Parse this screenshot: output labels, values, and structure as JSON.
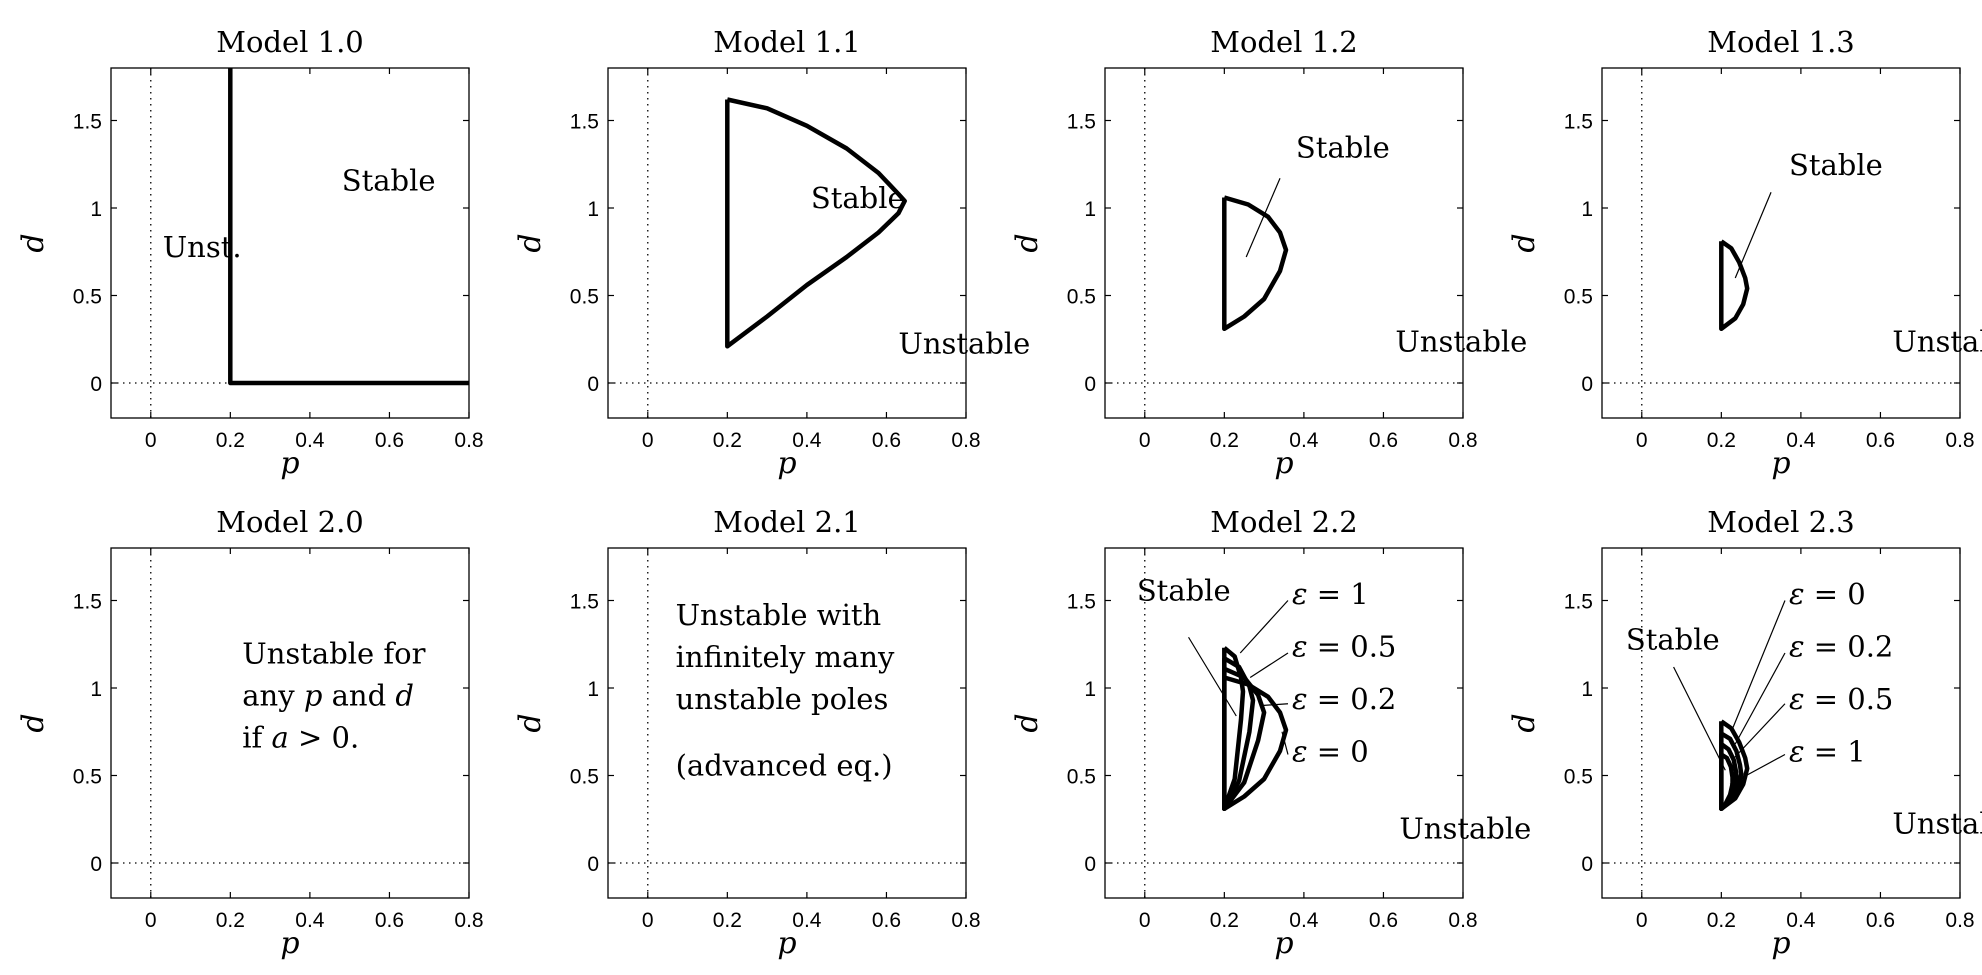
{
  "chart_data": [
    {
      "type": "line",
      "title": "Model 1.0",
      "xlabel": "p",
      "ylabel": "d",
      "xlim": [
        -0.1,
        0.8
      ],
      "ylim": [
        -0.2,
        1.8
      ],
      "xticks": [
        "0",
        "0.2",
        "0.4",
        "0.6",
        "0.8"
      ],
      "yticks": [
        "0",
        "0.5",
        "1",
        "1.5"
      ],
      "series": [
        {
          "points": [
            [
              0.2,
              1.8
            ],
            [
              0.2,
              0
            ],
            [
              0.8,
              0
            ]
          ]
        }
      ],
      "labels": [
        {
          "text": "Stable",
          "x": 0.48,
          "y": 1.1
        },
        {
          "text": "Unst.",
          "x": 0.03,
          "y": 0.72
        }
      ]
    },
    {
      "type": "line",
      "title": "Model 1.1",
      "xlabel": "p",
      "ylabel": "d",
      "xlim": [
        -0.1,
        0.8
      ],
      "ylim": [
        -0.2,
        1.8
      ],
      "xticks": [
        "0",
        "0.2",
        "0.4",
        "0.6",
        "0.8"
      ],
      "yticks": [
        "0",
        "0.5",
        "1",
        "1.5"
      ],
      "series": [
        {
          "points": [
            [
              0.2,
              1.62
            ],
            [
              0.3,
              1.57
            ],
            [
              0.4,
              1.47
            ],
            [
              0.5,
              1.34
            ],
            [
              0.58,
              1.2
            ],
            [
              0.63,
              1.08
            ],
            [
              0.646,
              1.04
            ],
            [
              0.63,
              0.97
            ],
            [
              0.58,
              0.86
            ],
            [
              0.5,
              0.72
            ],
            [
              0.4,
              0.56
            ],
            [
              0.3,
              0.38
            ],
            [
              0.2,
              0.21
            ],
            [
              0.2,
              1.62
            ]
          ]
        }
      ],
      "labels": [
        {
          "text": "Stable",
          "x": 0.41,
          "y": 1.0
        },
        {
          "text": "Unstable",
          "x": 0.63,
          "y": 0.17
        }
      ]
    },
    {
      "type": "line",
      "title": "Model 1.2",
      "xlabel": "p",
      "ylabel": "d",
      "xlim": [
        -0.1,
        0.8
      ],
      "ylim": [
        -0.2,
        1.8
      ],
      "xticks": [
        "0",
        "0.2",
        "0.4",
        "0.6",
        "0.8"
      ],
      "yticks": [
        "0",
        "0.5",
        "1",
        "1.5"
      ],
      "series": [
        {
          "points": [
            [
              0.2,
              1.06
            ],
            [
              0.26,
              1.02
            ],
            [
              0.31,
              0.95
            ],
            [
              0.34,
              0.86
            ],
            [
              0.355,
              0.76
            ],
            [
              0.34,
              0.64
            ],
            [
              0.3,
              0.48
            ],
            [
              0.25,
              0.38
            ],
            [
              0.2,
              0.31
            ],
            [
              0.2,
              1.06
            ]
          ]
        }
      ],
      "labels": [
        {
          "text": "Stable",
          "x": 0.38,
          "y": 1.29
        },
        {
          "text": "Unstable",
          "x": 0.63,
          "y": 0.18
        }
      ],
      "leaders": [
        {
          "from": [
            0.34,
            1.17
          ],
          "to": [
            0.255,
            0.72
          ]
        }
      ]
    },
    {
      "type": "line",
      "title": "Model 1.3",
      "xlabel": "p",
      "ylabel": "d",
      "xlim": [
        -0.1,
        0.8
      ],
      "ylim": [
        -0.2,
        1.8
      ],
      "xticks": [
        "0",
        "0.2",
        "0.4",
        "0.6",
        "0.8"
      ],
      "yticks": [
        "0",
        "0.5",
        "1",
        "1.5"
      ],
      "series": [
        {
          "points": [
            [
              0.2,
              0.81
            ],
            [
              0.225,
              0.77
            ],
            [
              0.245,
              0.69
            ],
            [
              0.26,
              0.6
            ],
            [
              0.265,
              0.54
            ],
            [
              0.255,
              0.45
            ],
            [
              0.235,
              0.37
            ],
            [
              0.2,
              0.31
            ],
            [
              0.2,
              0.81
            ]
          ]
        }
      ],
      "labels": [
        {
          "text": "Stable",
          "x": 0.37,
          "y": 1.19
        },
        {
          "text": "Unstable",
          "x": 0.63,
          "y": 0.18
        }
      ],
      "leaders": [
        {
          "from": [
            0.325,
            1.09
          ],
          "to": [
            0.235,
            0.6
          ]
        }
      ]
    },
    {
      "type": "line",
      "title": "Model 2.0",
      "xlabel": "p",
      "ylabel": "d",
      "xlim": [
        -0.1,
        0.8
      ],
      "ylim": [
        -0.2,
        1.8
      ],
      "xticks": [
        "0",
        "0.2",
        "0.4",
        "0.6",
        "0.8"
      ],
      "yticks": [
        "0",
        "0.5",
        "1",
        "1.5"
      ],
      "series": [],
      "labels": [
        {
          "text": "Unstable for",
          "x": 0.23,
          "y": 1.14
        },
        {
          "parts": [
            {
              "t": "any "
            },
            {
              "t": "p",
              "i": true
            },
            {
              "t": " and "
            },
            {
              "t": "d",
              "i": true
            }
          ],
          "x": 0.23,
          "y": 0.9
        },
        {
          "parts": [
            {
              "t": "if "
            },
            {
              "t": "a",
              "i": true
            },
            {
              "t": " > 0."
            }
          ],
          "x": 0.23,
          "y": 0.66
        }
      ]
    },
    {
      "type": "line",
      "title": "Model 2.1",
      "xlabel": "p",
      "ylabel": "d",
      "xlim": [
        -0.1,
        0.8
      ],
      "ylim": [
        -0.2,
        1.8
      ],
      "xticks": [
        "0",
        "0.2",
        "0.4",
        "0.6",
        "0.8"
      ],
      "yticks": [
        "0",
        "0.5",
        "1",
        "1.5"
      ],
      "series": [],
      "labels": [
        {
          "text": "Unstable with",
          "x": 0.07,
          "y": 1.36
        },
        {
          "text": "infinitely many",
          "x": 0.07,
          "y": 1.12
        },
        {
          "text": "unstable poles",
          "x": 0.07,
          "y": 0.88
        },
        {
          "text": "(advanced eq.)",
          "x": 0.07,
          "y": 0.5
        }
      ]
    },
    {
      "type": "line",
      "title": "Model 2.2",
      "xlabel": "p",
      "ylabel": "d",
      "xlim": [
        -0.1,
        0.8
      ],
      "ylim": [
        -0.2,
        1.8
      ],
      "xticks": [
        "0",
        "0.2",
        "0.4",
        "0.6",
        "0.8"
      ],
      "yticks": [
        "0",
        "0.5",
        "1",
        "1.5"
      ],
      "series": [
        {
          "name": "ε = 1",
          "points": [
            [
              0.2,
              1.23
            ],
            [
              0.226,
              1.18
            ],
            [
              0.242,
              1.06
            ],
            [
              0.247,
              0.98
            ],
            [
              0.242,
              0.82
            ],
            [
              0.226,
              0.48
            ],
            [
              0.2,
              0.31
            ],
            [
              0.2,
              1.23
            ]
          ]
        },
        {
          "name": "ε = 0.5",
          "points": [
            [
              0.2,
              1.17
            ],
            [
              0.237,
              1.12
            ],
            [
              0.263,
              1.01
            ],
            [
              0.272,
              0.93
            ],
            [
              0.263,
              0.75
            ],
            [
              0.237,
              0.47
            ],
            [
              0.2,
              0.31
            ],
            [
              0.2,
              1.17
            ]
          ]
        },
        {
          "name": "ε = 0.2",
          "points": [
            [
              0.2,
              1.11
            ],
            [
              0.25,
              1.06
            ],
            [
              0.285,
              0.96
            ],
            [
              0.3,
              0.86
            ],
            [
              0.285,
              0.7
            ],
            [
              0.25,
              0.46
            ],
            [
              0.2,
              0.31
            ],
            [
              0.2,
              1.11
            ]
          ]
        },
        {
          "name": "ε = 0",
          "points": [
            [
              0.2,
              1.06
            ],
            [
              0.26,
              1.02
            ],
            [
              0.31,
              0.95
            ],
            [
              0.34,
              0.86
            ],
            [
              0.355,
              0.76
            ],
            [
              0.34,
              0.64
            ],
            [
              0.3,
              0.48
            ],
            [
              0.25,
              0.38
            ],
            [
              0.2,
              0.31
            ],
            [
              0.2,
              1.06
            ]
          ]
        }
      ],
      "labels": [
        {
          "text": "Stable",
          "x": -0.02,
          "y": 1.5
        },
        {
          "parts": [
            {
              "t": "ε",
              "i": true
            },
            {
              "t": " = 1"
            }
          ],
          "x": 0.37,
          "y": 1.48
        },
        {
          "parts": [
            {
              "t": "ε",
              "i": true
            },
            {
              "t": " = 0.5"
            }
          ],
          "x": 0.37,
          "y": 1.18
        },
        {
          "parts": [
            {
              "t": "ε",
              "i": true
            },
            {
              "t": " = 0.2"
            }
          ],
          "x": 0.37,
          "y": 0.88
        },
        {
          "parts": [
            {
              "t": "ε",
              "i": true
            },
            {
              "t": " = 0"
            }
          ],
          "x": 0.37,
          "y": 0.58
        },
        {
          "text": "Unstable",
          "x": 0.64,
          "y": 0.14
        }
      ],
      "leaders": [
        {
          "from": [
            0.11,
            1.29
          ],
          "to": [
            0.23,
            0.84
          ]
        },
        {
          "from": [
            0.36,
            1.5
          ],
          "to": [
            0.24,
            1.2
          ]
        },
        {
          "from": [
            0.36,
            1.2
          ],
          "to": [
            0.265,
            1.06
          ]
        },
        {
          "from": [
            0.36,
            0.91
          ],
          "to": [
            0.295,
            0.9
          ]
        },
        {
          "from": [
            0.36,
            0.62
          ],
          "to": [
            0.345,
            0.75
          ]
        }
      ]
    },
    {
      "type": "line",
      "title": "Model 2.3",
      "xlabel": "p",
      "ylabel": "d",
      "xlim": [
        -0.1,
        0.8
      ],
      "ylim": [
        -0.2,
        1.8
      ],
      "xticks": [
        "0",
        "0.2",
        "0.4",
        "0.6",
        "0.8"
      ],
      "yticks": [
        "0",
        "0.5",
        "1",
        "1.5"
      ],
      "series": [
        {
          "name": "ε = 0",
          "points": [
            [
              0.2,
              0.81
            ],
            [
              0.225,
              0.77
            ],
            [
              0.245,
              0.69
            ],
            [
              0.26,
              0.6
            ],
            [
              0.265,
              0.54
            ],
            [
              0.255,
              0.45
            ],
            [
              0.235,
              0.37
            ],
            [
              0.2,
              0.31
            ],
            [
              0.2,
              0.81
            ]
          ]
        },
        {
          "name": "ε = 0.2",
          "points": [
            [
              0.2,
              0.74
            ],
            [
              0.222,
              0.71
            ],
            [
              0.238,
              0.64
            ],
            [
              0.247,
              0.56
            ],
            [
              0.25,
              0.51
            ],
            [
              0.243,
              0.43
            ],
            [
              0.225,
              0.36
            ],
            [
              0.2,
              0.31
            ],
            [
              0.2,
              0.74
            ]
          ]
        },
        {
          "name": "ε = 0.5",
          "points": [
            [
              0.2,
              0.68
            ],
            [
              0.218,
              0.65
            ],
            [
              0.231,
              0.59
            ],
            [
              0.237,
              0.52
            ],
            [
              0.238,
              0.48
            ],
            [
              0.232,
              0.41
            ],
            [
              0.218,
              0.35
            ],
            [
              0.2,
              0.31
            ],
            [
              0.2,
              0.68
            ]
          ]
        },
        {
          "name": "ε = 1",
          "points": [
            [
              0.2,
              0.62
            ],
            [
              0.214,
              0.6
            ],
            [
              0.224,
              0.55
            ],
            [
              0.228,
              0.49
            ],
            [
              0.228,
              0.45
            ],
            [
              0.222,
              0.39
            ],
            [
              0.211,
              0.34
            ],
            [
              0.2,
              0.31
            ],
            [
              0.2,
              0.62
            ]
          ]
        }
      ],
      "labels": [
        {
          "text": "Stable",
          "x": -0.04,
          "y": 1.22
        },
        {
          "parts": [
            {
              "t": "ε",
              "i": true
            },
            {
              "t": " = 0"
            }
          ],
          "x": 0.37,
          "y": 1.48
        },
        {
          "parts": [
            {
              "t": "ε",
              "i": true
            },
            {
              "t": " = 0.2"
            }
          ],
          "x": 0.37,
          "y": 1.18
        },
        {
          "parts": [
            {
              "t": "ε",
              "i": true
            },
            {
              "t": " = 0.5"
            }
          ],
          "x": 0.37,
          "y": 0.88
        },
        {
          "parts": [
            {
              "t": "ε",
              "i": true
            },
            {
              "t": " = 1"
            }
          ],
          "x": 0.37,
          "y": 0.58
        },
        {
          "text": "Unstable",
          "x": 0.63,
          "y": 0.17
        }
      ],
      "leaders": [
        {
          "from": [
            0.08,
            1.12
          ],
          "to": [
            0.21,
            0.53
          ]
        },
        {
          "from": [
            0.36,
            1.5
          ],
          "to": [
            0.225,
            0.75
          ]
        },
        {
          "from": [
            0.36,
            1.2
          ],
          "to": [
            0.235,
            0.68
          ]
        },
        {
          "from": [
            0.36,
            0.91
          ],
          "to": [
            0.232,
            0.6
          ]
        },
        {
          "from": [
            0.36,
            0.62
          ],
          "to": [
            0.222,
            0.45
          ]
        }
      ]
    }
  ]
}
